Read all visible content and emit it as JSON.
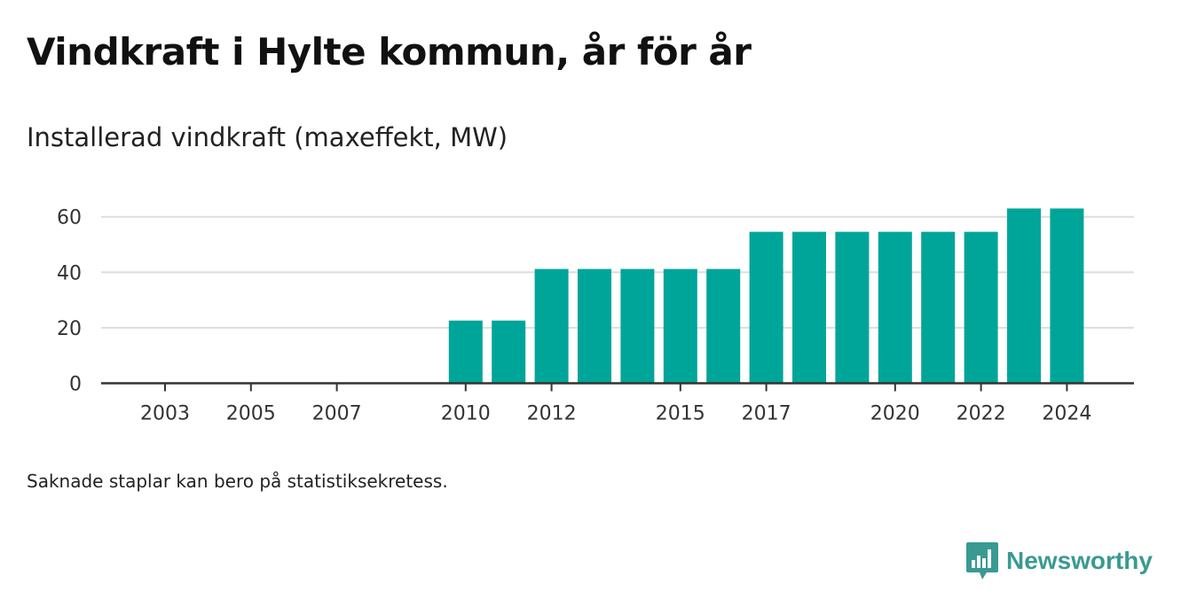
{
  "header": {
    "title": "Vindkraft i Hylte kommun, år för år",
    "subtitle": "Installerad vindkraft (maxeffekt, MW)"
  },
  "footer": {
    "note": "Saknade staplar kan bero på statistiksekretess.",
    "brand": "Newsworthy"
  },
  "colors": {
    "bar": "#00a599",
    "grid": "#dddddd",
    "axis": "#333333",
    "brand": "#3a9a92"
  },
  "chart_data": {
    "type": "bar",
    "title": "Vindkraft i Hylte kommun, år för år",
    "subtitle": "Installerad vindkraft (maxeffekt, MW)",
    "xlabel": "",
    "ylabel": "",
    "ylim": [
      0,
      66
    ],
    "yticks": [
      0,
      20,
      40,
      60
    ],
    "xlim": [
      2002,
      2025
    ],
    "xticks": [
      2003,
      2005,
      2007,
      2010,
      2012,
      2015,
      2017,
      2020,
      2022,
      2024
    ],
    "grid": true,
    "x": [
      2010,
      2011,
      2012,
      2013,
      2014,
      2015,
      2016,
      2017,
      2018,
      2019,
      2020,
      2021,
      2022,
      2023,
      2024
    ],
    "values": [
      22.6,
      22.6,
      41.2,
      41.2,
      41.2,
      41.2,
      41.2,
      54.6,
      54.6,
      54.6,
      54.6,
      54.6,
      54.6,
      63,
      63
    ]
  }
}
